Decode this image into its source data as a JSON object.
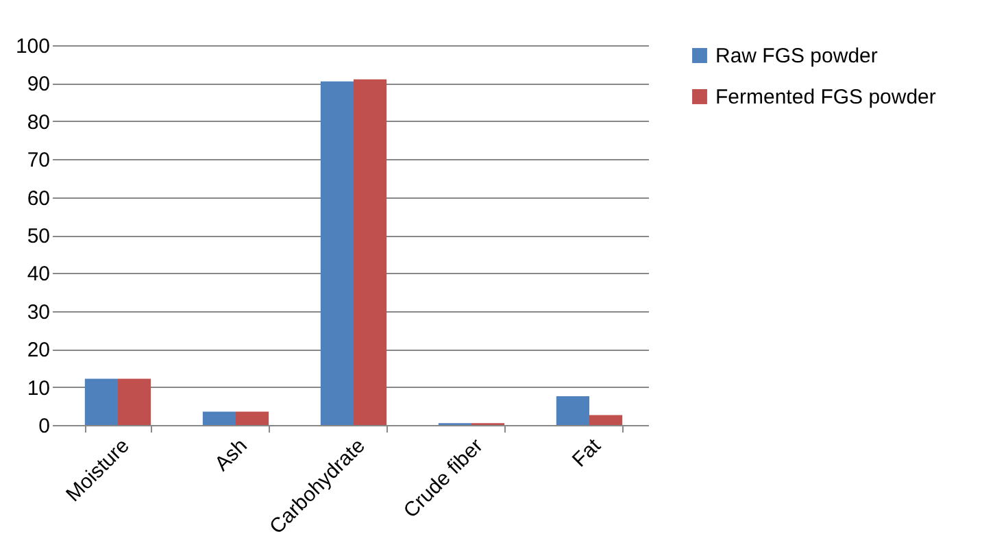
{
  "chart_data": {
    "type": "bar",
    "categories": [
      "Moisture",
      "Ash",
      "Carbohydrate",
      "Crude fiber",
      "Fat"
    ],
    "series": [
      {
        "name": "Raw FGS powder",
        "color": "#4f81bd",
        "values": [
          12.2,
          3.5,
          90.5,
          0.5,
          7.6
        ]
      },
      {
        "name": "Fermented FGS powder",
        "color": "#c0504d",
        "values": [
          12.2,
          3.5,
          91,
          0.5,
          2.6
        ]
      }
    ],
    "ylim": [
      0,
      100
    ],
    "yticks": [
      0,
      10,
      20,
      30,
      40,
      50,
      60,
      70,
      80,
      90,
      100
    ],
    "grid": "y",
    "legend": "right"
  }
}
